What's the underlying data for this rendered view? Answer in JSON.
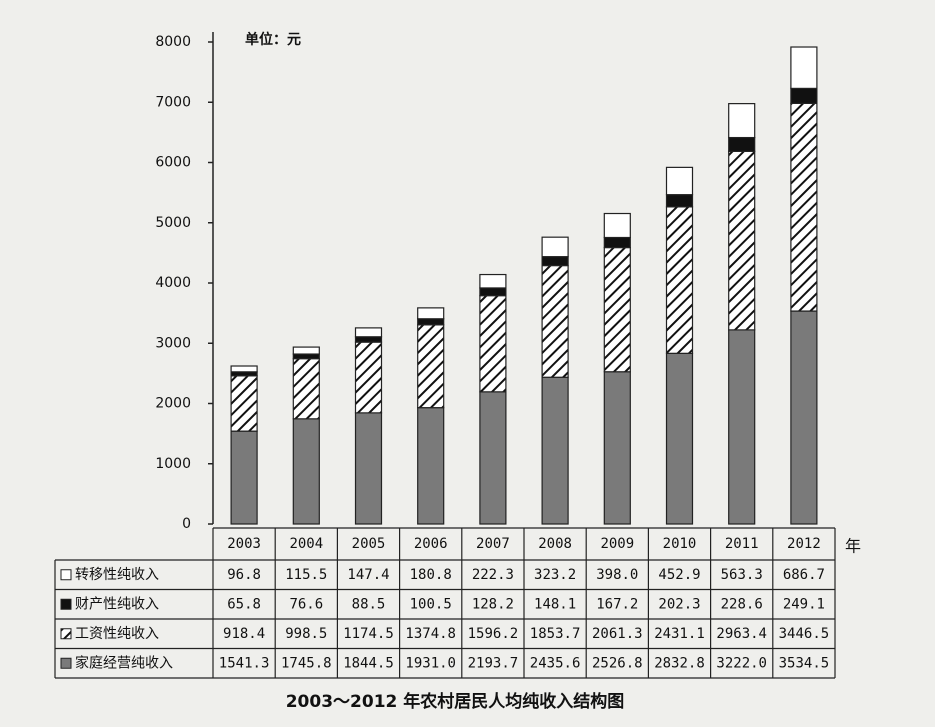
{
  "chart_data": {
    "type": "stacked_bar",
    "title": "2003～2012 年农村居民人均纯收入结构图",
    "y_label": "单位：元",
    "x_label": "年",
    "categories": [
      "2003",
      "2004",
      "2005",
      "2006",
      "2007",
      "2008",
      "2009",
      "2010",
      "2011",
      "2012"
    ],
    "series": [
      {
        "name": "转移性纯收入",
        "color": "#ffffff",
        "hatch": false,
        "values": [
          96.8,
          115.5,
          147.4,
          180.8,
          222.3,
          323.2,
          398.0,
          452.9,
          563.3,
          686.7
        ],
        "value_labels": [
          "96.8",
          "115.5",
          "147.4",
          "180.8",
          "222.3",
          "323.2",
          "398.0",
          "452.9",
          "563.3",
          "686.7"
        ]
      },
      {
        "name": "财产性纯收入",
        "color": "#111111",
        "hatch": false,
        "values": [
          65.8,
          76.6,
          88.5,
          100.5,
          128.2,
          148.1,
          167.2,
          202.3,
          228.6,
          249.1
        ],
        "value_labels": [
          "65.8",
          "76.6",
          "88.5",
          "100.5",
          "128.2",
          "148.1",
          "167.2",
          "202.3",
          "228.6",
          "249.1"
        ]
      },
      {
        "name": "工资性纯收入",
        "color": "#ffffff",
        "hatch": true,
        "values": [
          918.4,
          998.5,
          1174.5,
          1374.8,
          1596.2,
          1853.7,
          2061.3,
          2431.1,
          2963.4,
          3446.5
        ],
        "value_labels": [
          "918.4",
          "998.5",
          "1174.5",
          "1374.8",
          "1596.2",
          "1853.7",
          "2061.3",
          "2431.1",
          "2963.4",
          "3446.5"
        ]
      },
      {
        "name": "家庭经营纯收入",
        "color": "#7a7a7a",
        "hatch": false,
        "values": [
          1541.3,
          1745.8,
          1844.5,
          1931.0,
          2193.7,
          2435.6,
          2526.8,
          2832.8,
          3222.0,
          3534.5
        ],
        "value_labels": [
          "1541.3",
          "1745.8",
          "1844.5",
          "1931.0",
          "2193.7",
          "2435.6",
          "2526.8",
          "2832.8",
          "3222.0",
          "3534.5"
        ]
      }
    ],
    "ylim": [
      0,
      8000
    ],
    "yticks": [
      0,
      1000,
      2000,
      3000,
      4000,
      5000,
      6000,
      7000,
      8000
    ]
  }
}
